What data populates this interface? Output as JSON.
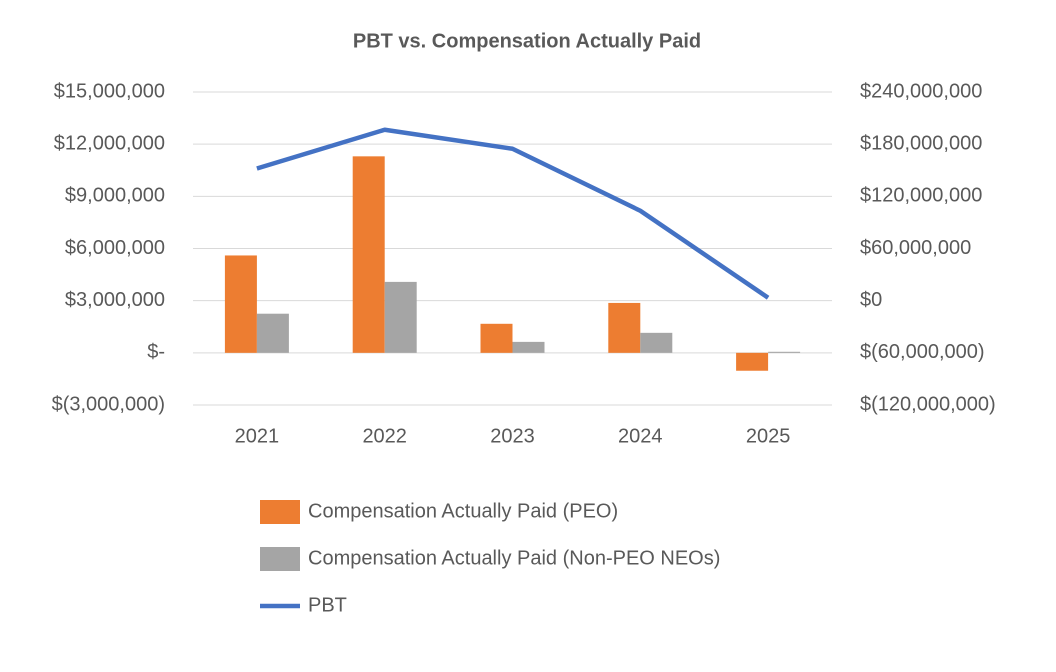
{
  "chart_data": {
    "type": "bar-line",
    "title": "PBT vs. Compensation Actually Paid",
    "categories": [
      "2021",
      "2022",
      "2023",
      "2024",
      "2025"
    ],
    "series": [
      {
        "name": "Compensation Actually Paid (PEO)",
        "color": "#ED7D31",
        "type": "bar",
        "values": [
          5600000,
          11300000,
          1670000,
          2870000,
          -1030000
        ]
      },
      {
        "name": "Compensation Actually Paid (Non-PEO NEOs)",
        "color": "#A5A5A5",
        "type": "bar",
        "values": [
          2250000,
          4080000,
          630000,
          1150000,
          60000
        ]
      },
      {
        "name": "PBT",
        "color": "#4472C4",
        "type": "line",
        "axis": "y2",
        "values": [
          152000000,
          196600000,
          174700000,
          103400000,
          3400000
        ]
      }
    ],
    "ylim": [
      -3000000,
      15000000
    ],
    "yticks": [
      {
        "value": -3000000,
        "label": "$(3,000,000)"
      },
      {
        "value": 0,
        "label": "$-"
      },
      {
        "value": 3000000,
        "label": "$3,000,000"
      },
      {
        "value": 6000000,
        "label": "$6,000,000"
      },
      {
        "value": 9000000,
        "label": "$9,000,000"
      },
      {
        "value": 12000000,
        "label": "$12,000,000"
      },
      {
        "value": 15000000,
        "label": "$15,000,000"
      }
    ],
    "y2lim": [
      -120000000,
      240000000
    ],
    "y2ticks": [
      {
        "value": -120000000,
        "label": "$(120,000,000)"
      },
      {
        "value": -60000000,
        "label": "$(60,000,000)"
      },
      {
        "value": 0,
        "label": "$0"
      },
      {
        "value": 60000000,
        "label": "$60,000,000"
      },
      {
        "value": 120000000,
        "label": "$120,000,000"
      },
      {
        "value": 180000000,
        "label": "$180,000,000"
      },
      {
        "value": 240000000,
        "label": "$240,000,000"
      }
    ],
    "grid": true,
    "legend": "bottom"
  }
}
